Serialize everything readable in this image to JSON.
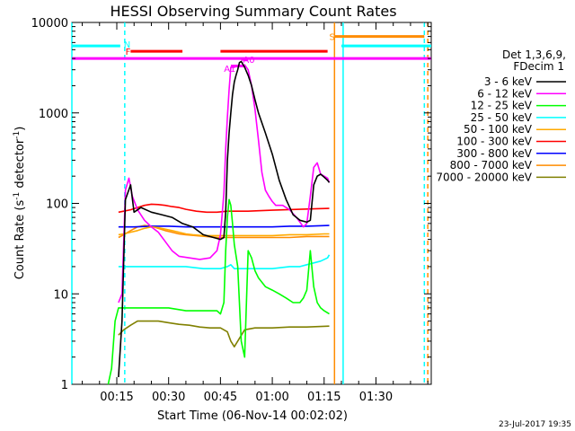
{
  "chart_data": {
    "type": "line",
    "title": "HESSI Observing Summary Count Rates",
    "xlabel": "Start Time (06-Nov-14 00:02:02)",
    "ylabel_main": "Count Rate (s",
    "ylabel_exp1": "-1",
    "ylabel_mid": " detector",
    "ylabel_exp2": "-1",
    "ylabel_end": ")",
    "yscale": "log",
    "ylim": [
      1,
      10000
    ],
    "xlim_min": [
      2,
      106
    ],
    "x_ticks_min": [
      15,
      30,
      45,
      60,
      75,
      90
    ],
    "x_tick_labels": [
      "00:15",
      "00:30",
      "00:45",
      "01:00",
      "01:15",
      "01:30"
    ],
    "y_ticks": [
      1,
      10,
      100,
      1000,
      10000
    ],
    "y_tick_labels": [
      "1",
      "10",
      "100",
      "1000",
      "10000"
    ],
    "footer": "23-Jul-2017 19:35",
    "legend": {
      "title_line1": "Det 1,3,6,9,",
      "title_line2": "FDecim 1",
      "placement": "right"
    },
    "series": [
      {
        "name": "3 - 6 keV",
        "color": "#000000",
        "points": [
          [
            15.5,
            1.2
          ],
          [
            16.5,
            5
          ],
          [
            17.5,
            110
          ],
          [
            19,
            160
          ],
          [
            20,
            80
          ],
          [
            22,
            90
          ],
          [
            25,
            80
          ],
          [
            28,
            75
          ],
          [
            31,
            70
          ],
          [
            34,
            60
          ],
          [
            37,
            55
          ],
          [
            40,
            45
          ],
          [
            43,
            42
          ],
          [
            45,
            40
          ],
          [
            46,
            42
          ],
          [
            46.5,
            80
          ],
          [
            47,
            300
          ],
          [
            47.5,
            600
          ],
          [
            48,
            1000
          ],
          [
            48.5,
            1600
          ],
          [
            49,
            2200
          ],
          [
            49.5,
            2600
          ],
          [
            50,
            3000
          ],
          [
            50.5,
            3600
          ],
          [
            51,
            3700
          ],
          [
            52,
            3200
          ],
          [
            53,
            2600
          ],
          [
            54,
            2000
          ],
          [
            55,
            1400
          ],
          [
            56,
            1000
          ],
          [
            58,
            600
          ],
          [
            60,
            350
          ],
          [
            62,
            180
          ],
          [
            64,
            110
          ],
          [
            66,
            75
          ],
          [
            68,
            65
          ],
          [
            70,
            62
          ],
          [
            71,
            65
          ],
          [
            72,
            160
          ],
          [
            73,
            200
          ],
          [
            74,
            210
          ],
          [
            75,
            195
          ],
          [
            76,
            180
          ],
          [
            76.5,
            170
          ]
        ]
      },
      {
        "name": "6 - 12 keV",
        "color": "#ff00ff",
        "points": [
          [
            15.5,
            8
          ],
          [
            16.5,
            10
          ],
          [
            17.5,
            140
          ],
          [
            18.5,
            190
          ],
          [
            19.5,
            120
          ],
          [
            21,
            85
          ],
          [
            23,
            65
          ],
          [
            25,
            55
          ],
          [
            27,
            48
          ],
          [
            29,
            38
          ],
          [
            31,
            30
          ],
          [
            33,
            26
          ],
          [
            36,
            25
          ],
          [
            39,
            24
          ],
          [
            42,
            25
          ],
          [
            44,
            30
          ],
          [
            45,
            45
          ],
          [
            46,
            130
          ],
          [
            46.5,
            400
          ],
          [
            47,
            900
          ],
          [
            47.5,
            1800
          ],
          [
            48,
            3200
          ],
          [
            49,
            3200
          ],
          [
            50,
            3300
          ],
          [
            51,
            3300
          ],
          [
            52,
            3400
          ],
          [
            53,
            3000
          ],
          [
            54,
            2000
          ],
          [
            55,
            1100
          ],
          [
            56,
            500
          ],
          [
            57,
            220
          ],
          [
            58,
            140
          ],
          [
            59,
            120
          ],
          [
            60,
            105
          ],
          [
            61,
            95
          ],
          [
            63,
            95
          ],
          [
            65,
            85
          ],
          [
            67,
            70
          ],
          [
            69,
            55
          ],
          [
            70,
            60
          ],
          [
            71,
            120
          ],
          [
            72,
            250
          ],
          [
            73,
            280
          ],
          [
            74,
            210
          ],
          [
            75,
            200
          ],
          [
            76,
            190
          ],
          [
            76.5,
            170
          ]
        ]
      },
      {
        "name": "12 - 25 keV",
        "color": "#00ff00",
        "points": [
          [
            12.5,
            1
          ],
          [
            13.5,
            1.5
          ],
          [
            14.5,
            5
          ],
          [
            15.5,
            7
          ],
          [
            17,
            7
          ],
          [
            20,
            7
          ],
          [
            25,
            7
          ],
          [
            30,
            7
          ],
          [
            35,
            6.5
          ],
          [
            40,
            6.5
          ],
          [
            44,
            6.5
          ],
          [
            45,
            6
          ],
          [
            46,
            8
          ],
          [
            46.5,
            30
          ],
          [
            47,
            70
          ],
          [
            47.5,
            110
          ],
          [
            48,
            95
          ],
          [
            48.5,
            60
          ],
          [
            49,
            35
          ],
          [
            50,
            20
          ],
          [
            51,
            3
          ],
          [
            52,
            2
          ],
          [
            53,
            30
          ],
          [
            54,
            25
          ],
          [
            55,
            18
          ],
          [
            56,
            15
          ],
          [
            58,
            12
          ],
          [
            60,
            11
          ],
          [
            62,
            10
          ],
          [
            64,
            9
          ],
          [
            66,
            8
          ],
          [
            68,
            8
          ],
          [
            69,
            9
          ],
          [
            70,
            11
          ],
          [
            71,
            30
          ],
          [
            72,
            12
          ],
          [
            73,
            8
          ],
          [
            74,
            7
          ],
          [
            75,
            6.5
          ],
          [
            76.5,
            6
          ]
        ]
      },
      {
        "name": "25 - 50 keV",
        "color": "#00ffff",
        "points": [
          [
            15.5,
            20
          ],
          [
            20,
            20
          ],
          [
            25,
            20
          ],
          [
            30,
            20
          ],
          [
            35,
            20
          ],
          [
            40,
            19
          ],
          [
            45,
            19
          ],
          [
            47,
            20
          ],
          [
            48,
            21
          ],
          [
            49,
            19
          ],
          [
            50,
            19
          ],
          [
            52,
            19
          ],
          [
            55,
            19
          ],
          [
            58,
            19
          ],
          [
            60,
            19
          ],
          [
            65,
            20
          ],
          [
            68,
            20
          ],
          [
            70,
            21
          ],
          [
            72,
            22
          ],
          [
            74,
            23
          ],
          [
            76,
            25
          ],
          [
            76.5,
            27
          ]
        ]
      },
      {
        "name": "50 - 100 keV",
        "color": "#ffaa00",
        "points": [
          [
            15.5,
            45
          ],
          [
            17,
            46
          ],
          [
            19,
            48
          ],
          [
            21,
            50
          ],
          [
            23,
            53
          ],
          [
            25,
            55
          ],
          [
            27,
            54
          ],
          [
            29,
            52
          ],
          [
            31,
            50
          ],
          [
            33,
            48
          ],
          [
            35,
            46
          ],
          [
            37,
            45
          ],
          [
            40,
            44
          ],
          [
            43,
            44
          ],
          [
            46,
            44
          ],
          [
            50,
            44
          ],
          [
            55,
            44
          ],
          [
            60,
            44
          ],
          [
            65,
            45
          ],
          [
            70,
            45
          ],
          [
            75,
            46
          ],
          [
            76.5,
            46
          ]
        ]
      },
      {
        "name": "100 - 300 keV",
        "color": "#ff0000",
        "points": [
          [
            15.5,
            80
          ],
          [
            17,
            82
          ],
          [
            19,
            85
          ],
          [
            21,
            90
          ],
          [
            23,
            95
          ],
          [
            25,
            98
          ],
          [
            27,
            97
          ],
          [
            29,
            95
          ],
          [
            31,
            92
          ],
          [
            33,
            90
          ],
          [
            35,
            86
          ],
          [
            38,
            82
          ],
          [
            41,
            80
          ],
          [
            44,
            80
          ],
          [
            47,
            82
          ],
          [
            50,
            82
          ],
          [
            53,
            82
          ],
          [
            56,
            83
          ],
          [
            60,
            84
          ],
          [
            64,
            85
          ],
          [
            68,
            86
          ],
          [
            72,
            87
          ],
          [
            76.5,
            88
          ]
        ]
      },
      {
        "name": "300 - 800 keV",
        "color": "#0000ff",
        "points": [
          [
            15.5,
            55
          ],
          [
            20,
            55
          ],
          [
            25,
            56
          ],
          [
            30,
            56
          ],
          [
            35,
            55
          ],
          [
            40,
            55
          ],
          [
            45,
            55
          ],
          [
            50,
            55
          ],
          [
            55,
            55
          ],
          [
            60,
            55
          ],
          [
            65,
            56
          ],
          [
            70,
            56
          ],
          [
            76.5,
            57
          ]
        ]
      },
      {
        "name": "800 - 7000 keV",
        "color": "#ff8c00",
        "points": [
          [
            15.5,
            42
          ],
          [
            17,
            45
          ],
          [
            19,
            50
          ],
          [
            21,
            55
          ],
          [
            23,
            57
          ],
          [
            25,
            56
          ],
          [
            27,
            53
          ],
          [
            29,
            50
          ],
          [
            31,
            48
          ],
          [
            33,
            46
          ],
          [
            35,
            45
          ],
          [
            38,
            44
          ],
          [
            41,
            43
          ],
          [
            44,
            42
          ],
          [
            47,
            42
          ],
          [
            50,
            42
          ],
          [
            55,
            42
          ],
          [
            60,
            42
          ],
          [
            65,
            42
          ],
          [
            70,
            43
          ],
          [
            76.5,
            43
          ]
        ]
      },
      {
        "name": "7000 - 20000 keV",
        "color": "#808000",
        "points": [
          [
            15.5,
            3.5
          ],
          [
            17,
            4
          ],
          [
            19,
            4.5
          ],
          [
            21,
            5
          ],
          [
            23,
            5
          ],
          [
            25,
            5
          ],
          [
            27,
            5
          ],
          [
            30,
            4.8
          ],
          [
            33,
            4.6
          ],
          [
            36,
            4.5
          ],
          [
            39,
            4.3
          ],
          [
            42,
            4.2
          ],
          [
            45,
            4.2
          ],
          [
            47,
            3.8
          ],
          [
            48,
            3
          ],
          [
            49,
            2.6
          ],
          [
            50,
            3
          ],
          [
            52,
            4
          ],
          [
            55,
            4.2
          ],
          [
            60,
            4.2
          ],
          [
            65,
            4.3
          ],
          [
            70,
            4.3
          ],
          [
            76.5,
            4.4
          ]
        ]
      }
    ],
    "annotation_lines": [
      {
        "label": "N",
        "color": "#00ffff",
        "y": 5500,
        "x_range": [
          2,
          16
        ],
        "label_x": 17,
        "label_y": 5800
      },
      {
        "label": "F",
        "color": "#ff0000",
        "y": 4800,
        "x_range": [
          19,
          34
        ],
        "label_x": 17.5,
        "label_y": 4800
      },
      {
        "label": "",
        "color": "#ff0000",
        "y": 4800,
        "x_range": [
          45,
          76
        ],
        "label_x": 0,
        "label_y": 0
      },
      {
        "label": "",
        "color": "#ff00ff",
        "y": 4000,
        "x_range": [
          2,
          106
        ],
        "label_x": 0,
        "label_y": 0
      },
      {
        "label": "A1",
        "color": "#ff00ff",
        "y": 3300,
        "x_range": [
          48,
          52
        ],
        "label_x": 46,
        "label_y": 3100
      },
      {
        "label": "A0",
        "color": "#ff00ff",
        "y": 3900,
        "x_range": [
          51,
          53
        ],
        "label_x": 51.5,
        "label_y": 3900
      },
      {
        "label": "S",
        "color": "#ff8c00",
        "y": 7000,
        "x_range": [
          78,
          104
        ],
        "label_x": 76.5,
        "label_y": 7000
      },
      {
        "label": "",
        "color": "#00ffff",
        "y": 5500,
        "x_range": [
          80,
          106
        ],
        "label_x": 0,
        "label_y": 0
      }
    ],
    "vertical_lines": [
      {
        "color": "#00ffff",
        "x": 2,
        "dashed": false
      },
      {
        "color": "#00ffff",
        "x": 17.3,
        "dashed": true
      },
      {
        "color": "#ff8c00",
        "x": 78,
        "dashed": false
      },
      {
        "color": "#00ffff",
        "x": 80.5,
        "dashed": false
      },
      {
        "color": "#00ffff",
        "x": 104,
        "dashed": true
      },
      {
        "color": "#ff8c00",
        "x": 105,
        "dashed": true
      }
    ]
  }
}
